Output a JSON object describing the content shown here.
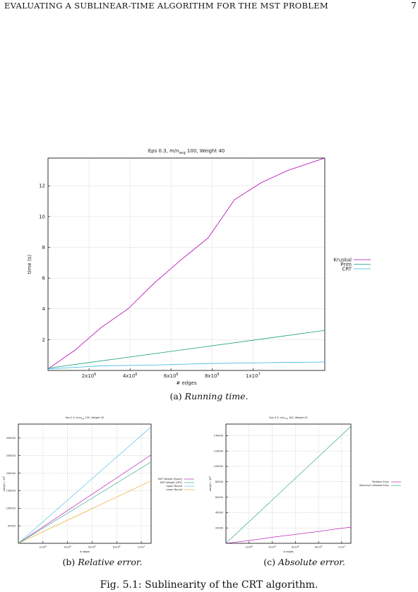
{
  "header": {
    "title": "EVALUATING A SUBLINEAR-TIME ALGORITHM FOR THE MST PROBLEM",
    "page_number": "7"
  },
  "captions": {
    "a_label": "(a)",
    "a_text": "Running time.",
    "b_label": "(b)",
    "b_text": "Relative error.",
    "c_label": "(c)",
    "c_text": "Absolute error."
  },
  "figure_caption": "Fig. 5.1: Sublinearity of the CRT algorithm.",
  "chart_data": [
    {
      "type": "line",
      "title": "Eps 0.3, m/n_avg 100, Weight 40",
      "xlabel": "# edges",
      "ylabel": "time (s)",
      "xlim": [
        0,
        13500000
      ],
      "ylim": [
        0,
        13.8
      ],
      "xticks": [
        {
          "v": 2000000,
          "label": "2x10^6"
        },
        {
          "v": 4000000,
          "label": "4x10^6"
        },
        {
          "v": 6000000,
          "label": "6x10^6"
        },
        {
          "v": 8000000,
          "label": "8x10^6"
        },
        {
          "v": 10000000,
          "label": "1x10^7"
        }
      ],
      "yticks": [
        {
          "v": 2,
          "label": "2"
        },
        {
          "v": 4,
          "label": "4"
        },
        {
          "v": 6,
          "label": "6"
        },
        {
          "v": 8,
          "label": "8"
        },
        {
          "v": 10,
          "label": "10"
        },
        {
          "v": 12,
          "label": "12"
        }
      ],
      "grid": true,
      "legend_position": "right",
      "series": [
        {
          "name": "Kruskal",
          "color": "#b300b3",
          "x": [
            0,
            1300000,
            2600000,
            3900000,
            5200000,
            6500000,
            7800000,
            9100000,
            10400000,
            11700000,
            13500000
          ],
          "y": [
            0.1,
            1.3,
            2.8,
            4.0,
            5.7,
            7.2,
            8.6,
            11.1,
            12.2,
            13.0,
            13.8
          ]
        },
        {
          "name": "Prim",
          "color": "#139e7a",
          "x": [
            0,
            13500000
          ],
          "y": [
            0.15,
            2.6
          ]
        },
        {
          "name": "CRT",
          "color": "#3bb6e0",
          "x": [
            0,
            2600000,
            5200000,
            7800000,
            10400000,
            13500000
          ],
          "y": [
            0.1,
            0.3,
            0.35,
            0.45,
            0.5,
            0.55
          ]
        }
      ]
    },
    {
      "type": "line",
      "title": "Eps 0.3, m/n_avg 100, Weight 40",
      "xlabel": "# edges",
      "ylabel": "weight / 10^6",
      "xlim": [
        0,
        10800000
      ],
      "ylim": [
        0,
        340000
      ],
      "xticks": [
        {
          "v": 2000000,
          "label": "2x10^6"
        },
        {
          "v": 4000000,
          "label": "4x10^6"
        },
        {
          "v": 6000000,
          "label": "6x10^6"
        },
        {
          "v": 8000000,
          "label": "8x10^6"
        },
        {
          "v": 10000000,
          "label": "1x10^7"
        }
      ],
      "yticks": [
        {
          "v": 50000,
          "label": "50000"
        },
        {
          "v": 100000,
          "label": "100000"
        },
        {
          "v": 150000,
          "label": "150000"
        },
        {
          "v": 200000,
          "label": "200000"
        },
        {
          "v": 250000,
          "label": "250000"
        },
        {
          "v": 300000,
          "label": "300000"
        }
      ],
      "grid": true,
      "legend_position": "right",
      "series": [
        {
          "name": "MST Weight (Exact)",
          "color": "#b300b3",
          "x": [
            0,
            10800000
          ],
          "y": [
            0,
            252000
          ]
        },
        {
          "name": "MST Weight (CRT)",
          "color": "#139e7a",
          "x": [
            0,
            10800000
          ],
          "y": [
            0,
            232000
          ]
        },
        {
          "name": "Upper Bound",
          "color": "#3bb6e0",
          "x": [
            0,
            10800000
          ],
          "y": [
            0,
            332000
          ]
        },
        {
          "name": "Lower Bound",
          "color": "#e69f00",
          "x": [
            0,
            10800000
          ],
          "y": [
            0,
            178000
          ]
        }
      ]
    },
    {
      "type": "line",
      "title": "Eps 0.3, m/n_avg 100, Weight 40",
      "xlabel": "# edges",
      "ylabel": "weight / 10^6",
      "xlim": [
        0,
        10800000
      ],
      "ylim": [
        0,
        155000
      ],
      "xticks": [
        {
          "v": 2000000,
          "label": "2x10^6"
        },
        {
          "v": 4000000,
          "label": "4x10^6"
        },
        {
          "v": 6000000,
          "label": "6x10^6"
        },
        {
          "v": 8000000,
          "label": "8x10^6"
        },
        {
          "v": 10000000,
          "label": "1x10^7"
        }
      ],
      "yticks": [
        {
          "v": 20000,
          "label": "20000"
        },
        {
          "v": 40000,
          "label": "40000"
        },
        {
          "v": 60000,
          "label": "60000"
        },
        {
          "v": 80000,
          "label": "80000"
        },
        {
          "v": 100000,
          "label": "100000"
        },
        {
          "v": 120000,
          "label": "120000"
        },
        {
          "v": 140000,
          "label": "140000"
        }
      ],
      "grid": true,
      "legend_position": "right",
      "series": [
        {
          "name": "Relative Error",
          "color": "#b300b3",
          "x": [
            0,
            1350000,
            2700000,
            4050000,
            5400000,
            6750000,
            8100000,
            9450000,
            10800000
          ],
          "y": [
            0,
            2500,
            5000,
            8000,
            10500,
            13000,
            15500,
            18500,
            21000
          ]
        },
        {
          "name": "Maximum Allowed Error",
          "color": "#139e7a",
          "x": [
            0,
            10800000
          ],
          "y": [
            0,
            152000
          ]
        }
      ]
    }
  ]
}
